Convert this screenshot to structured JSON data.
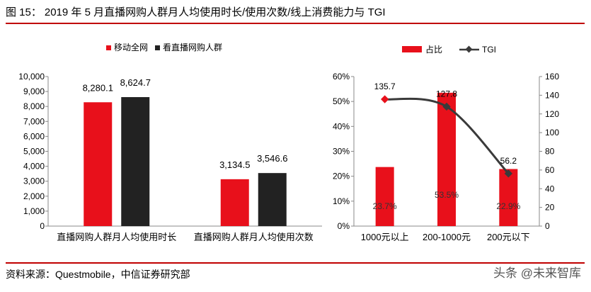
{
  "figure": {
    "number": "图 15：",
    "title": "2019 年 5 月直播网购人群月人均使用时长/使用次数/线上消费能力与 TGI"
  },
  "source": "资料来源：Questmobile，中信证券研究部",
  "watermark": "头条 @未来智库",
  "colors": {
    "red": "#e8101b",
    "black": "#222222",
    "line": "#3a3a3a",
    "accent": "#c00000"
  },
  "chart_data": [
    {
      "type": "bar",
      "categories": [
        "直播网购人群月人均使用时长",
        "直播网购人群月人均使用次数"
      ],
      "series": [
        {
          "name": "移动全网",
          "values": [
            8280.1,
            3134.5
          ],
          "labels": [
            "8,280.1",
            "3,134.5"
          ],
          "color": "#e8101b"
        },
        {
          "name": "看直播网购人群",
          "values": [
            8624.7,
            3546.6
          ],
          "labels": [
            "8,624.7",
            "3,546.6"
          ],
          "color": "#222222"
        }
      ],
      "ylim": [
        0,
        10000
      ],
      "yticks": [
        "0",
        "1,000",
        "2,000",
        "3,000",
        "4,000",
        "5,000",
        "6,000",
        "7,000",
        "8,000",
        "9,000",
        "10,000"
      ],
      "legend_position": "top"
    },
    {
      "type": "bar+line",
      "categories": [
        "1000元以上",
        "200-1000元",
        "200元以下"
      ],
      "series": [
        {
          "name": "占比",
          "kind": "bar",
          "axis": "left",
          "values": [
            23.7,
            53.5,
            22.9
          ],
          "labels": [
            "23.7%",
            "53.5%",
            "22.9%"
          ],
          "color": "#e8101b"
        },
        {
          "name": "TGI",
          "kind": "line",
          "axis": "right",
          "values": [
            135.7,
            127.8,
            56.2
          ],
          "labels": [
            "135.7",
            "127.8",
            "56.2"
          ],
          "color": "#3a3a3a"
        }
      ],
      "ylim_left": [
        0,
        60
      ],
      "yticks_left": [
        "0%",
        "10%",
        "20%",
        "30%",
        "40%",
        "50%",
        "60%"
      ],
      "ylim_right": [
        0,
        160
      ],
      "yticks_right": [
        "0",
        "20",
        "40",
        "60",
        "80",
        "100",
        "120",
        "140",
        "160"
      ],
      "legend_position": "top"
    }
  ]
}
